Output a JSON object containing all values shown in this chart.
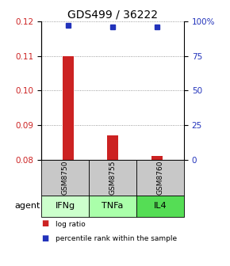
{
  "title": "GDS499 / 36222",
  "categories": [
    "IFNg",
    "TNFa",
    "IL4"
  ],
  "sample_ids": [
    "GSM8750",
    "GSM8755",
    "GSM8760"
  ],
  "bar_values": [
    0.11,
    0.087,
    0.081
  ],
  "bar_base": 0.08,
  "percentile_values": [
    97,
    96,
    96
  ],
  "ylim": [
    0.08,
    0.12
  ],
  "y2lim": [
    0,
    100
  ],
  "yticks": [
    0.08,
    0.09,
    0.1,
    0.11,
    0.12
  ],
  "y2ticks": [
    0,
    25,
    50,
    75,
    100
  ],
  "bar_color": "#cc2222",
  "dot_color": "#2233bb",
  "gray_color": "#c8c8c8",
  "agent_colors": [
    "#ccffcc",
    "#aaffaa",
    "#55dd55"
  ],
  "legend_items": [
    "log ratio",
    "percentile rank within the sample"
  ],
  "background_color": "#ffffff",
  "title_fontsize": 10,
  "tick_fontsize": 7.5,
  "table_label_fontsize": 8,
  "sample_fontsize": 6.5,
  "agent_label_fontsize": 8
}
